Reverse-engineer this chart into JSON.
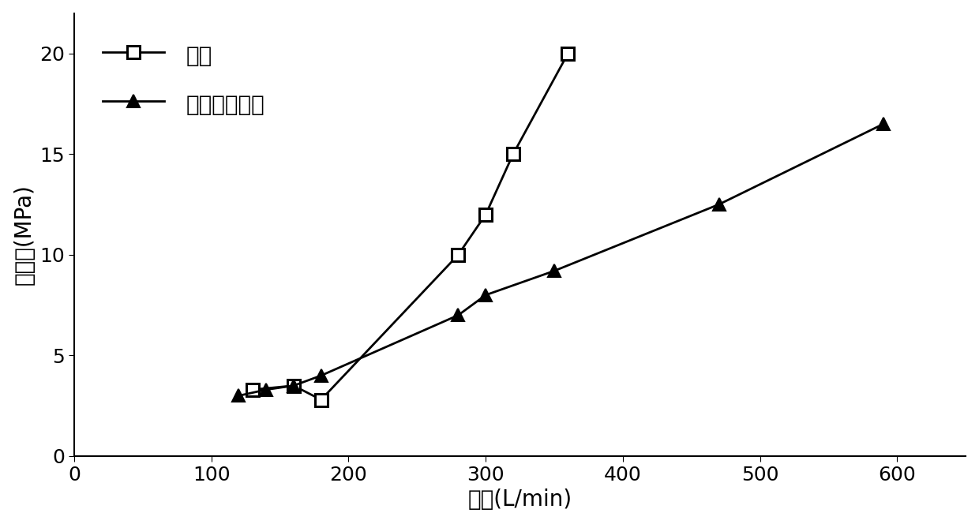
{
  "series1_label": "清水",
  "series1_x": [
    130,
    160,
    180,
    280,
    300,
    320,
    360
  ],
  "series1_y": [
    3.3,
    3.5,
    2.8,
    10.0,
    12.0,
    15.0,
    20.0
  ],
  "series2_label": "滑溜水压裂液",
  "series2_x": [
    120,
    140,
    160,
    180,
    280,
    300,
    350,
    470,
    590
  ],
  "series2_y": [
    3.0,
    3.3,
    3.5,
    4.0,
    7.0,
    8.0,
    9.2,
    12.5,
    16.5
  ],
  "xlabel": "排量(L/min)",
  "ylabel": "压力降(MPa)",
  "xlim": [
    0,
    650
  ],
  "ylim": [
    0,
    22
  ],
  "xticks": [
    0,
    100,
    200,
    300,
    400,
    500,
    600
  ],
  "yticks": [
    0,
    5,
    10,
    15,
    20
  ],
  "line_color": "#000000",
  "marker_size": 11,
  "linewidth": 2.0,
  "font_size_label": 20,
  "font_size_tick": 18,
  "font_size_legend": 20,
  "background_color": "#ffffff"
}
